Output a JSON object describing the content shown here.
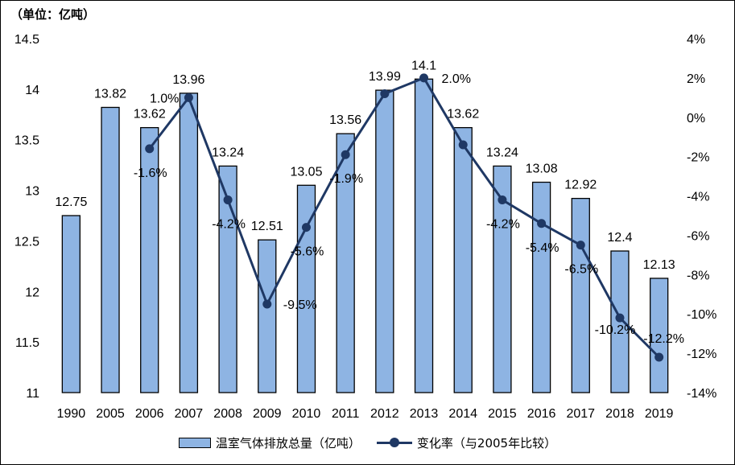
{
  "unit_label": "（单位：亿吨）",
  "colors": {
    "bar": "#8eb4e3",
    "line": "#1f3864"
  },
  "chart_data": {
    "type": "bar",
    "categories": [
      "1990",
      "2005",
      "2006",
      "2007",
      "2008",
      "2009",
      "2010",
      "2011",
      "2012",
      "2013",
      "2014",
      "2015",
      "2016",
      "2017",
      "2018",
      "2019"
    ],
    "series": [
      {
        "name": "温室气体排放总量（亿吨）",
        "type": "bar",
        "axis": "left",
        "values": [
          12.75,
          13.82,
          13.62,
          13.96,
          13.24,
          12.51,
          13.05,
          13.56,
          13.99,
          14.1,
          13.62,
          13.24,
          13.08,
          12.92,
          12.4,
          12.13
        ],
        "labels": [
          "12.75",
          "13.82",
          "13.62",
          "13.96",
          "13.24",
          "12.51",
          "13.05",
          "13.56",
          "13.99",
          "14.1",
          "13.62",
          "13.24",
          "13.08",
          "12.92",
          "12.4",
          "12.13"
        ]
      },
      {
        "name": "变化率（与2005年比较）",
        "type": "line",
        "axis": "right",
        "values": [
          null,
          null,
          -1.6,
          1.0,
          -4.2,
          -9.5,
          -5.6,
          -1.9,
          1.2,
          2.0,
          -1.4,
          -4.2,
          -5.4,
          -6.5,
          -10.2,
          -12.2
        ],
        "labels": [
          "",
          "",
          "-1.6%",
          "1.0%",
          "-4.2%",
          "-9.5%",
          "-5.6%",
          "-1.9%",
          "",
          "2.0%",
          "",
          "-4.2%",
          "-5.4%",
          "-6.5%",
          "-10.2%",
          "-12.2%"
        ]
      }
    ],
    "y_left": {
      "min": 11,
      "max": 14.5,
      "ticks": [
        "11",
        "11.5",
        "12",
        "12.5",
        "13",
        "13.5",
        "14",
        "14.5"
      ]
    },
    "y_right": {
      "min": -14,
      "max": 4,
      "ticks": [
        "4%",
        "2%",
        "0%",
        "-2%",
        "-4%",
        "-6%",
        "-8%",
        "-10%",
        "-12%",
        "-14%"
      ]
    },
    "legend_position": "bottom",
    "grid": false
  }
}
